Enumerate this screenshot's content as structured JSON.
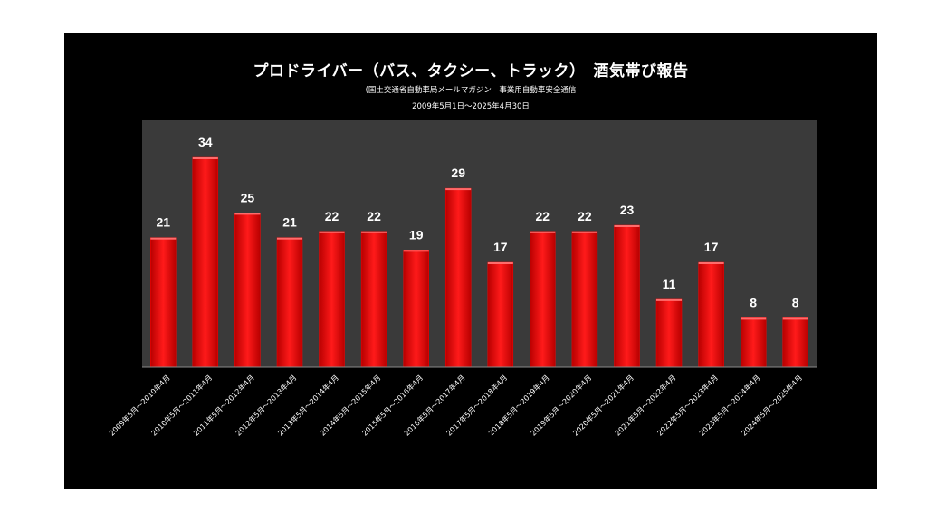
{
  "title": "プロドライバー（バス、タクシー、トラック）　酒気帯び報告",
  "subtitle": "(国土交通省自動車局メールマガジン　事業用自動車安全通信",
  "period": "2009年5月1日～2025年4月30日",
  "colors": {
    "background": "#000000",
    "plot_area": "#3a3a3a",
    "bar": "#ff0000",
    "text": "#ffffff"
  },
  "chart_data": {
    "type": "bar",
    "title": "プロドライバー（バス、タクシー、トラック）　酒気帯び報告",
    "xlabel": "",
    "ylabel": "",
    "categories": [
      "2009年5月～2010年4月",
      "2010年5月～2011年4月",
      "2011年5月～2012年4月",
      "2012年5月～2013年4月",
      "2013年5月～2014年4月",
      "2014年5月～2015年4月",
      "2015年5月～2016年4月",
      "2016年5月～2017年4月",
      "2017年5月～2018年4月",
      "2018年5月～2019年4月",
      "2019年5月～2020年4月",
      "2020年5月～2021年4月",
      "2021年5月～2022年4月",
      "2022年5月～2023年4月",
      "2023年5月～2024年4月",
      "2024年5月～2025年4月"
    ],
    "values": [
      21,
      34,
      25,
      21,
      22,
      22,
      19,
      29,
      17,
      22,
      22,
      23,
      11,
      17,
      8,
      8
    ],
    "ylim": [
      0,
      40
    ],
    "grid": false,
    "legend": "none",
    "data_labels": true
  }
}
